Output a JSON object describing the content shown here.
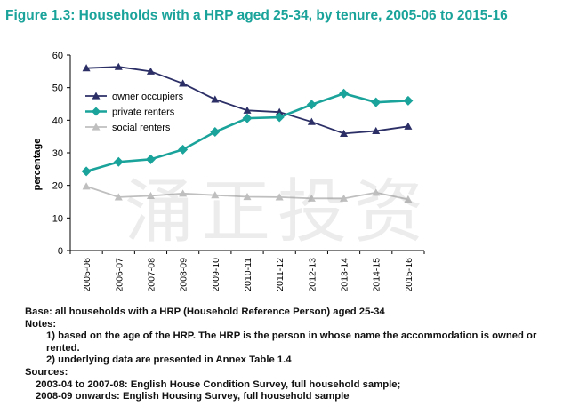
{
  "title": "Figure 1.3: Households with a HRP aged 25-34, by tenure, 2005-06 to 2015-16",
  "watermark": "涌正投资",
  "notes": {
    "base": "Base: all households with a HRP (Household Reference Person) aged 25-34",
    "notes_heading": "Notes:",
    "note1": "1) based on the age of the HRP. The HRP is the person in whose name the accommodation is owned or rented.",
    "note2": "2) underlying data are presented in Annex Table 1.4",
    "sources_heading": "Sources:",
    "source1": "2003-04 to 2007-08: English House Condition Survey, full household sample;",
    "source2": "2008-09 onwards: English Housing Survey, full household sample"
  },
  "chart_data": {
    "type": "line",
    "ylabel": "percentage",
    "xlabel": "",
    "ylim": [
      0,
      60
    ],
    "yticks": [
      0,
      10,
      20,
      30,
      40,
      50,
      60
    ],
    "grid": false,
    "legend_position": "top-left",
    "categories": [
      "2005-06",
      "2006-07",
      "2007-08",
      "2008-09",
      "2009-10",
      "2010-11",
      "2011-12",
      "2012-13",
      "2013-14",
      "2014-15",
      "2015-16"
    ],
    "series": [
      {
        "name": "owner occupiers",
        "color": "#2b2f66",
        "marker": "triangle",
        "values": [
          56,
          56.4,
          55,
          51.3,
          46.4,
          43,
          42.5,
          39.5,
          35.9,
          36.7,
          38.1
        ]
      },
      {
        "name": "private renters",
        "color": "#1aa39a",
        "marker": "diamond",
        "values": [
          24.3,
          27.2,
          28,
          31,
          36.4,
          40.6,
          40.9,
          44.8,
          48.2,
          45.5,
          46
        ]
      },
      {
        "name": "social renters",
        "color": "#bfbfbf",
        "marker": "triangle",
        "values": [
          19.7,
          16.4,
          16.8,
          17.5,
          17,
          16.5,
          16.4,
          16,
          16,
          17.8,
          15.7
        ]
      }
    ]
  }
}
